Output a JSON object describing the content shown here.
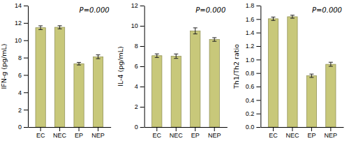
{
  "chart_data": [
    {
      "type": "bar",
      "ylabel": "IFN-g (pg/mL)",
      "annotation": "P=0.000",
      "categories": [
        "EC",
        "NEC",
        "EP",
        "NEP"
      ],
      "values": [
        11.45,
        11.5,
        7.3,
        8.1
      ],
      "errors": [
        0.22,
        0.18,
        0.15,
        0.22
      ],
      "color": "#c8c87a",
      "ylim": [
        0,
        14
      ],
      "yticks": [
        0,
        2,
        4,
        6,
        8,
        10,
        12,
        14
      ]
    },
    {
      "type": "bar",
      "ylabel": "IL-4 (pg/mL)",
      "annotation": "P=0.000",
      "categories": [
        "EC",
        "NEC",
        "EP",
        "NEP"
      ],
      "values": [
        7.05,
        7.0,
        9.5,
        8.65
      ],
      "errors": [
        0.18,
        0.22,
        0.3,
        0.18
      ],
      "color": "#c8c87a",
      "ylim": [
        0,
        12
      ],
      "yticks": [
        0,
        2,
        4,
        6,
        8,
        10,
        12
      ]
    },
    {
      "type": "bar",
      "ylabel": "Th1/Th2 ratio",
      "annotation": "P=0.000",
      "categories": [
        "EC",
        "NEC",
        "EP",
        "NEP"
      ],
      "values": [
        1.605,
        1.635,
        0.76,
        0.93
      ],
      "errors": [
        0.025,
        0.022,
        0.025,
        0.03
      ],
      "color": "#c8c87a",
      "ylim": [
        0,
        1.8
      ],
      "yticks": [
        {
          "value": 0,
          "label": "0.0"
        },
        0.2,
        0.4,
        0.6,
        0.8,
        {
          "value": 1.0,
          "label": "1.0"
        },
        1.2,
        1.4,
        1.6,
        1.8
      ]
    }
  ]
}
